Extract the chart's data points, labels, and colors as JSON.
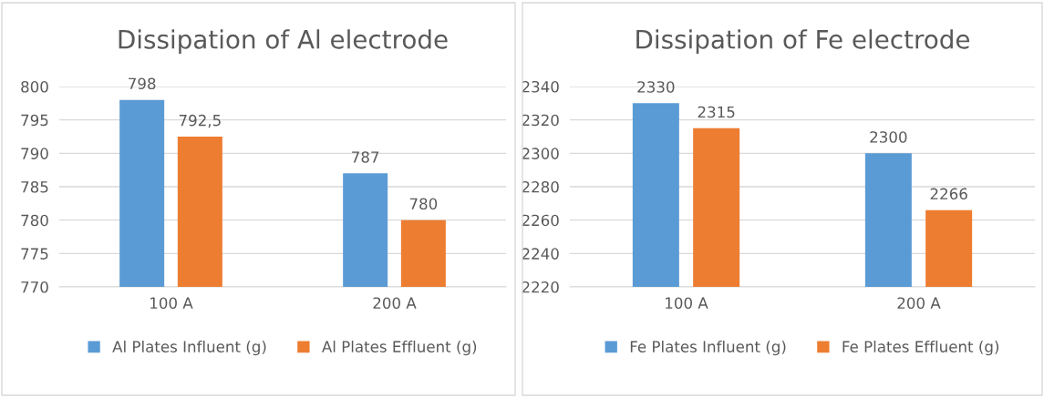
{
  "chart_data": [
    {
      "type": "bar",
      "title": "Dissipation of Al electrode",
      "categories": [
        "100 A",
        "200 A"
      ],
      "series": [
        {
          "name": "Al Plates Influent (g)",
          "color": "#5b9bd5",
          "values": [
            798,
            787
          ],
          "value_labels": [
            "798",
            "787"
          ]
        },
        {
          "name": "Al Plates Effluent (g)",
          "color": "#ed7d31",
          "values": [
            792.5,
            780
          ],
          "value_labels": [
            "792,5",
            "780"
          ]
        }
      ],
      "ylim": [
        770,
        800
      ],
      "yticks": [
        770,
        775,
        780,
        785,
        790,
        795,
        800
      ],
      "grid": "y",
      "legend": "bottom"
    },
    {
      "type": "bar",
      "title": "Dissipation of Fe electrode",
      "categories": [
        "100 A",
        "200 A"
      ],
      "series": [
        {
          "name": "Fe Plates Influent (g)",
          "color": "#5b9bd5",
          "values": [
            2330,
            2300
          ],
          "value_labels": [
            "2330",
            "2300"
          ]
        },
        {
          "name": "Fe Plates Effluent (g)",
          "color": "#ed7d31",
          "values": [
            2315,
            2266
          ],
          "value_labels": [
            "2315",
            "2266"
          ]
        }
      ],
      "ylim": [
        2220,
        2340
      ],
      "yticks": [
        2220,
        2240,
        2260,
        2280,
        2300,
        2320,
        2340
      ],
      "grid": "y",
      "legend": "bottom"
    }
  ]
}
